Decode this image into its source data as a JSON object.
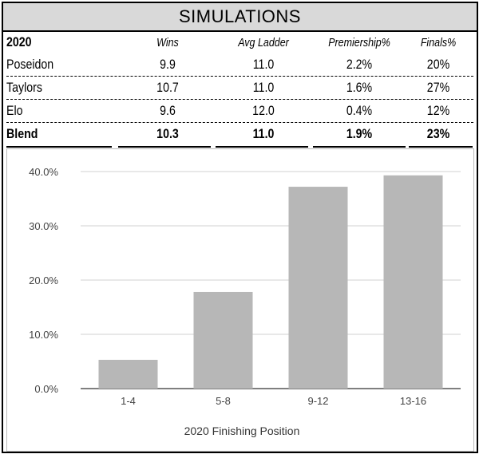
{
  "title": "SIMULATIONS",
  "table": {
    "year": "2020",
    "columns": [
      "Wins",
      "Avg Ladder",
      "Premiership%",
      "Finals%"
    ],
    "rows": [
      {
        "name": "Poseidon",
        "values": [
          "9.9",
          "11.0",
          "2.2%",
          "20%"
        ]
      },
      {
        "name": "Taylors",
        "values": [
          "10.7",
          "11.0",
          "1.6%",
          "27%"
        ]
      },
      {
        "name": "Elo",
        "values": [
          "9.6",
          "12.0",
          "0.4%",
          "12%"
        ]
      }
    ],
    "total": {
      "name": "Blend",
      "values": [
        "10.3",
        "11.0",
        "1.9%",
        "23%"
      ]
    }
  },
  "chart_data": {
    "type": "bar",
    "categories": [
      "1-4",
      "5-8",
      "9-12",
      "13-16"
    ],
    "values": [
      5.3,
      17.8,
      37.2,
      39.3
    ],
    "title": "",
    "xlabel": "2020 Finishing Position",
    "ylabel": "",
    "ylim": [
      0,
      40
    ],
    "yticks": [
      0,
      10,
      20,
      30,
      40
    ],
    "ytick_labels": [
      "0.0%",
      "10.0%",
      "20.0%",
      "30.0%",
      "40.0%"
    ],
    "bar_color": "#b7b7b7",
    "grid": true
  }
}
